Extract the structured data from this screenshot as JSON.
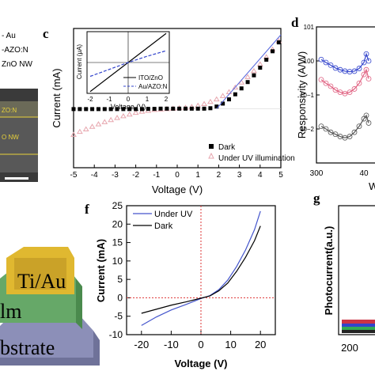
{
  "panels": {
    "a_fragment": {
      "legend": [
        "- Au",
        "-AZO:N",
        "ZnO NW"
      ],
      "sem_labels": [
        "ZO:N",
        "O NW"
      ]
    },
    "c": {
      "label": "c",
      "xlabel": "Voltage (V)",
      "ylabel": "Current (mA)",
      "legend": [
        "Dark",
        "Under UV illumination"
      ],
      "inset": {
        "xlabel": "Voltage (V)",
        "ylabel": "Current (μA)",
        "legend": [
          "ITO/ZnO",
          "Au/AZO:N"
        ]
      }
    },
    "d": {
      "label": "d",
      "ylabel": "Responsivity (A/W)",
      "x_ticks_visible": [
        "300",
        "40"
      ],
      "xlabel_fragment": "W"
    },
    "device": {
      "labels": [
        "Ti/Au",
        "lm",
        "bstrate"
      ]
    },
    "f": {
      "label": "f",
      "xlabel": "Voltage (V)",
      "ylabel": "Current (mA)",
      "legend": [
        "Under UV",
        "Dark"
      ]
    },
    "g": {
      "label": "g",
      "ylabel": "Photocurrent(a.u.)",
      "x_tick_visible": "200"
    }
  },
  "chart_data": [
    {
      "panel": "c",
      "type": "scatter",
      "x_range": [
        -5,
        5
      ],
      "y_range": [
        -1.4,
        1.9
      ],
      "x_ticks": [
        -5,
        -4,
        -3,
        -2,
        -1,
        0,
        1,
        2,
        3,
        4,
        5
      ],
      "series": [
        {
          "name": "Dark",
          "marker": "filled-square",
          "color": "#000000",
          "x": [
            -5.0,
            -4.7,
            -4.4,
            -4.1,
            -3.8,
            -3.5,
            -3.2,
            -2.9,
            -2.6,
            -2.3,
            -2.0,
            -1.7,
            -1.4,
            -1.1,
            -0.8,
            -0.5,
            -0.2,
            0.1,
            0.4,
            0.7,
            1.0,
            1.3,
            1.6,
            1.9,
            2.2,
            2.5,
            2.8,
            3.1,
            3.4,
            3.7,
            4.0,
            4.3,
            4.6,
            4.9
          ],
          "y": [
            -0.01,
            -0.01,
            -0.01,
            -0.01,
            -0.01,
            -0.01,
            -0.01,
            -0.01,
            -0.01,
            -0.01,
            -0.01,
            -0.01,
            -0.005,
            -0.005,
            0.0,
            0.0,
            0.0,
            0.0,
            0.0,
            0.0,
            0.0,
            0.0,
            0.01,
            0.05,
            0.12,
            0.22,
            0.34,
            0.48,
            0.63,
            0.79,
            0.97,
            1.16,
            1.36,
            1.57
          ]
        },
        {
          "name": "Under UV illumination",
          "marker": "open-triangle",
          "color": "#e7a6ae",
          "x": [
            -5.0,
            -4.7,
            -4.4,
            -4.1,
            -3.8,
            -3.5,
            -3.2,
            -2.9,
            -2.6,
            -2.3,
            -2.0,
            -1.7,
            -1.4,
            -1.1,
            -0.8,
            -0.5,
            -0.2,
            0.1,
            0.4,
            0.7,
            1.0,
            1.3,
            1.6,
            1.9,
            2.2,
            2.5,
            2.8,
            3.1,
            3.4,
            3.7,
            4.0,
            4.3,
            4.6,
            4.9
          ],
          "y": [
            -0.62,
            -0.55,
            -0.49,
            -0.43,
            -0.37,
            -0.32,
            -0.27,
            -0.22,
            -0.18,
            -0.14,
            -0.1,
            -0.07,
            -0.05,
            -0.03,
            -0.02,
            -0.01,
            0.0,
            0.01,
            0.02,
            0.04,
            0.07,
            0.11,
            0.16,
            0.22,
            0.3,
            0.39,
            0.5,
            0.62,
            0.75,
            0.89,
            1.05,
            1.22,
            1.4,
            1.6
          ]
        }
      ]
    },
    {
      "panel": "c-inset",
      "type": "line",
      "x_range": [
        -2,
        2
      ],
      "y_range": [
        -2,
        2
      ],
      "x_ticks": [
        -2,
        -1,
        0,
        1,
        2
      ],
      "series": [
        {
          "name": "ITO/ZnO",
          "style": "solid",
          "color": "#000000",
          "x": [
            -2,
            2
          ],
          "y": [
            -2.1,
            2.1
          ]
        },
        {
          "name": "Au/AZO:N",
          "style": "dashed",
          "color": "#3344cc",
          "x": [
            -2,
            -1,
            0,
            1,
            2
          ],
          "y": [
            -1.0,
            -0.5,
            0.0,
            0.45,
            0.85
          ]
        }
      ]
    },
    {
      "panel": "d",
      "type": "scatter",
      "y_scale": "log",
      "x_range": [
        300,
        500
      ],
      "y_range": [
        0.001,
        10
      ],
      "series": [
        {
          "color": "#3344cc",
          "x": [
            310,
            320,
            330,
            340,
            350,
            360,
            370,
            380,
            390,
            400,
            405,
            410
          ],
          "y": [
            1.1,
            0.9,
            0.75,
            0.62,
            0.55,
            0.5,
            0.48,
            0.5,
            0.6,
            0.9,
            1.6,
            1.0
          ]
        },
        {
          "color": "#e06080",
          "x": [
            310,
            320,
            330,
            340,
            350,
            360,
            370,
            380,
            390,
            400,
            405,
            410
          ],
          "y": [
            0.28,
            0.22,
            0.18,
            0.14,
            0.12,
            0.11,
            0.12,
            0.15,
            0.22,
            0.4,
            0.55,
            0.3
          ]
        },
        {
          "color": "#555555",
          "x": [
            310,
            320,
            330,
            340,
            350,
            360,
            370,
            380,
            390,
            400,
            405,
            410
          ],
          "y": [
            0.012,
            0.01,
            0.008,
            0.007,
            0.006,
            0.0055,
            0.006,
            0.008,
            0.012,
            0.02,
            0.025,
            0.015
          ]
        }
      ]
    },
    {
      "panel": "f",
      "type": "line",
      "x_range": [
        -25,
        25
      ],
      "y_range": [
        -10,
        25
      ],
      "x_ticks": [
        -20,
        -10,
        0,
        10,
        20
      ],
      "y_ticks": [
        -10,
        -5,
        0,
        5,
        10,
        15,
        20,
        25
      ],
      "series": [
        {
          "name": "Under UV",
          "color": "#4455cc",
          "x": [
            -20,
            -15,
            -10,
            -5,
            0,
            3,
            6,
            9,
            12,
            15,
            18,
            20
          ],
          "y": [
            -7.5,
            -5.2,
            -3.3,
            -1.8,
            -0.2,
            0.6,
            2.2,
            4.8,
            8.5,
            13.0,
            18.5,
            23.5
          ]
        },
        {
          "name": "Dark",
          "color": "#000000",
          "x": [
            -20,
            -15,
            -10,
            -5,
            0,
            3,
            6,
            9,
            12,
            15,
            18,
            20
          ],
          "y": [
            -4.2,
            -3.1,
            -2.0,
            -1.1,
            -0.1,
            0.5,
            1.9,
            4.0,
            7.2,
            11.0,
            15.5,
            19.5
          ]
        }
      ]
    }
  ]
}
